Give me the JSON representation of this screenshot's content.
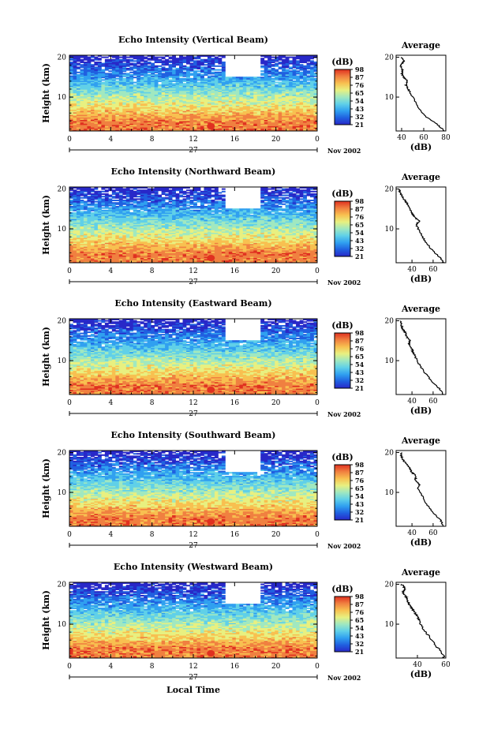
{
  "chart_data": [
    {
      "type": "heatmap",
      "title": "Echo Intensity (Vertical Beam)",
      "ylabel": "Height (km)",
      "x_ticks": [
        "0",
        "4",
        "8",
        "12",
        "16",
        "20",
        "0"
      ],
      "y_ticks": [
        "20",
        "10"
      ],
      "day_label": "27",
      "month_year": "Nov 2002",
      "xlim": [
        0,
        24
      ],
      "ylim": [
        1.5,
        20.5
      ],
      "colorbar": {
        "unit": "(dB)",
        "ticks": [
          "98",
          "87",
          "76",
          "65",
          "54",
          "43",
          "32",
          "21"
        ]
      },
      "average": {
        "title": "Average",
        "xlabel": "(dB)",
        "x_ticks": [
          "40",
          "60",
          "80"
        ],
        "xlim": [
          35,
          80
        ],
        "y_ticks": [
          "20",
          "10"
        ],
        "profile": {
          "height": [
            1.5,
            3,
            5,
            7,
            9,
            11,
            12,
            13,
            14,
            15,
            16,
            17,
            18,
            19,
            20
          ],
          "db": [
            79,
            73,
            62,
            56,
            52,
            48,
            46,
            44,
            45,
            42,
            40,
            41,
            39,
            42,
            40
          ]
        }
      }
    },
    {
      "type": "heatmap",
      "title": "Echo Intensity (Northward Beam)",
      "ylabel": "Height (km)",
      "x_ticks": [
        "0",
        "4",
        "8",
        "12",
        "16",
        "20",
        "0"
      ],
      "y_ticks": [
        "20",
        "10"
      ],
      "day_label": "27",
      "month_year": "Nov 2002",
      "xlim": [
        0,
        24
      ],
      "ylim": [
        1.5,
        20.5
      ],
      "colorbar": {
        "unit": "(dB)",
        "ticks": [
          "98",
          "87",
          "76",
          "65",
          "54",
          "43",
          "32",
          "21"
        ]
      },
      "average": {
        "title": "Average",
        "xlabel": "(dB)",
        "x_ticks": [
          "40",
          "60"
        ],
        "xlim": [
          25,
          72
        ],
        "y_ticks": [
          "20",
          "10"
        ],
        "profile": {
          "height": [
            1.5,
            3,
            5,
            7,
            9,
            11,
            12,
            13,
            14,
            15,
            16,
            17,
            18,
            19,
            20
          ],
          "db": [
            70,
            66,
            58,
            52,
            48,
            44,
            47,
            42,
            40,
            38,
            36,
            34,
            31,
            29,
            28
          ]
        }
      }
    },
    {
      "type": "heatmap",
      "title": "Echo Intensity (Eastward Beam)",
      "ylabel": "Height (km)",
      "x_ticks": [
        "0",
        "4",
        "8",
        "12",
        "16",
        "20",
        "0"
      ],
      "y_ticks": [
        "20",
        "10"
      ],
      "day_label": "27",
      "month_year": "Nov 2002",
      "xlim": [
        0,
        24
      ],
      "ylim": [
        1.5,
        20.5
      ],
      "colorbar": {
        "unit": "(dB)",
        "ticks": [
          "98",
          "87",
          "76",
          "65",
          "54",
          "43",
          "32",
          "21"
        ]
      },
      "average": {
        "title": "Average",
        "xlabel": "(dB)",
        "x_ticks": [
          "40",
          "60"
        ],
        "xlim": [
          25,
          72
        ],
        "y_ticks": [
          "20",
          "10"
        ],
        "profile": {
          "height": [
            1.5,
            3,
            5,
            7,
            9,
            11,
            12,
            13,
            14,
            15,
            16,
            17,
            18,
            19,
            20
          ],
          "db": [
            70,
            66,
            58,
            52,
            47,
            43,
            41,
            40,
            37,
            38,
            35,
            34,
            31,
            30,
            29
          ]
        }
      }
    },
    {
      "type": "heatmap",
      "title": "Echo Intensity (Southward Beam)",
      "ylabel": "Height (km)",
      "x_ticks": [
        "0",
        "4",
        "8",
        "12",
        "16",
        "20",
        "0"
      ],
      "y_ticks": [
        "20",
        "10"
      ],
      "day_label": "27",
      "month_year": "Nov 2002",
      "xlim": [
        0,
        24
      ],
      "ylim": [
        1.5,
        20.5
      ],
      "colorbar": {
        "unit": "(dB)",
        "ticks": [
          "98",
          "87",
          "76",
          "65",
          "54",
          "43",
          "32",
          "21"
        ]
      },
      "average": {
        "title": "Average",
        "xlabel": "(dB)",
        "x_ticks": [
          "40",
          "60"
        ],
        "xlim": [
          25,
          72
        ],
        "y_ticks": [
          "20",
          "10"
        ],
        "profile": {
          "height": [
            1.5,
            3,
            5,
            7,
            9,
            11,
            12,
            13,
            14,
            15,
            16,
            17,
            18,
            19,
            20
          ],
          "db": [
            70,
            67,
            60,
            54,
            50,
            46,
            47,
            43,
            44,
            40,
            38,
            35,
            32,
            30,
            30
          ]
        }
      }
    },
    {
      "type": "heatmap",
      "title": "Echo Intensity (Westward Beam)",
      "ylabel": "Height (km)",
      "x_ticks": [
        "0",
        "4",
        "8",
        "12",
        "16",
        "20",
        "0"
      ],
      "y_ticks": [
        "20",
        "10"
      ],
      "day_label": "27",
      "month_year": "Nov 2002",
      "xlim": [
        0,
        24
      ],
      "ylim": [
        1.5,
        20.5
      ],
      "colorbar": {
        "unit": "(dB)",
        "ticks": [
          "98",
          "87",
          "76",
          "65",
          "54",
          "43",
          "32",
          "21"
        ]
      },
      "average": {
        "title": "Average",
        "xlabel": "(dB)",
        "x_ticks": [
          "40",
          "60"
        ],
        "xlim": [
          25,
          60
        ],
        "y_ticks": [
          "20",
          "10"
        ],
        "profile": {
          "height": [
            1.5,
            3,
            5,
            7,
            9,
            11,
            12,
            13,
            14,
            15,
            16,
            17,
            18,
            19,
            20
          ],
          "db": [
            59,
            57,
            52,
            48,
            44,
            41,
            40,
            38,
            36,
            34,
            33,
            32,
            30,
            31,
            29
          ]
        }
      }
    }
  ],
  "xlabel": "Local Time",
  "colors": {
    "scale": [
      "#2828c8",
      "#2060e0",
      "#30a0f0",
      "#60d0e8",
      "#a0e8c0",
      "#e8f080",
      "#f8c050",
      "#f08040",
      "#e03020"
    ]
  }
}
